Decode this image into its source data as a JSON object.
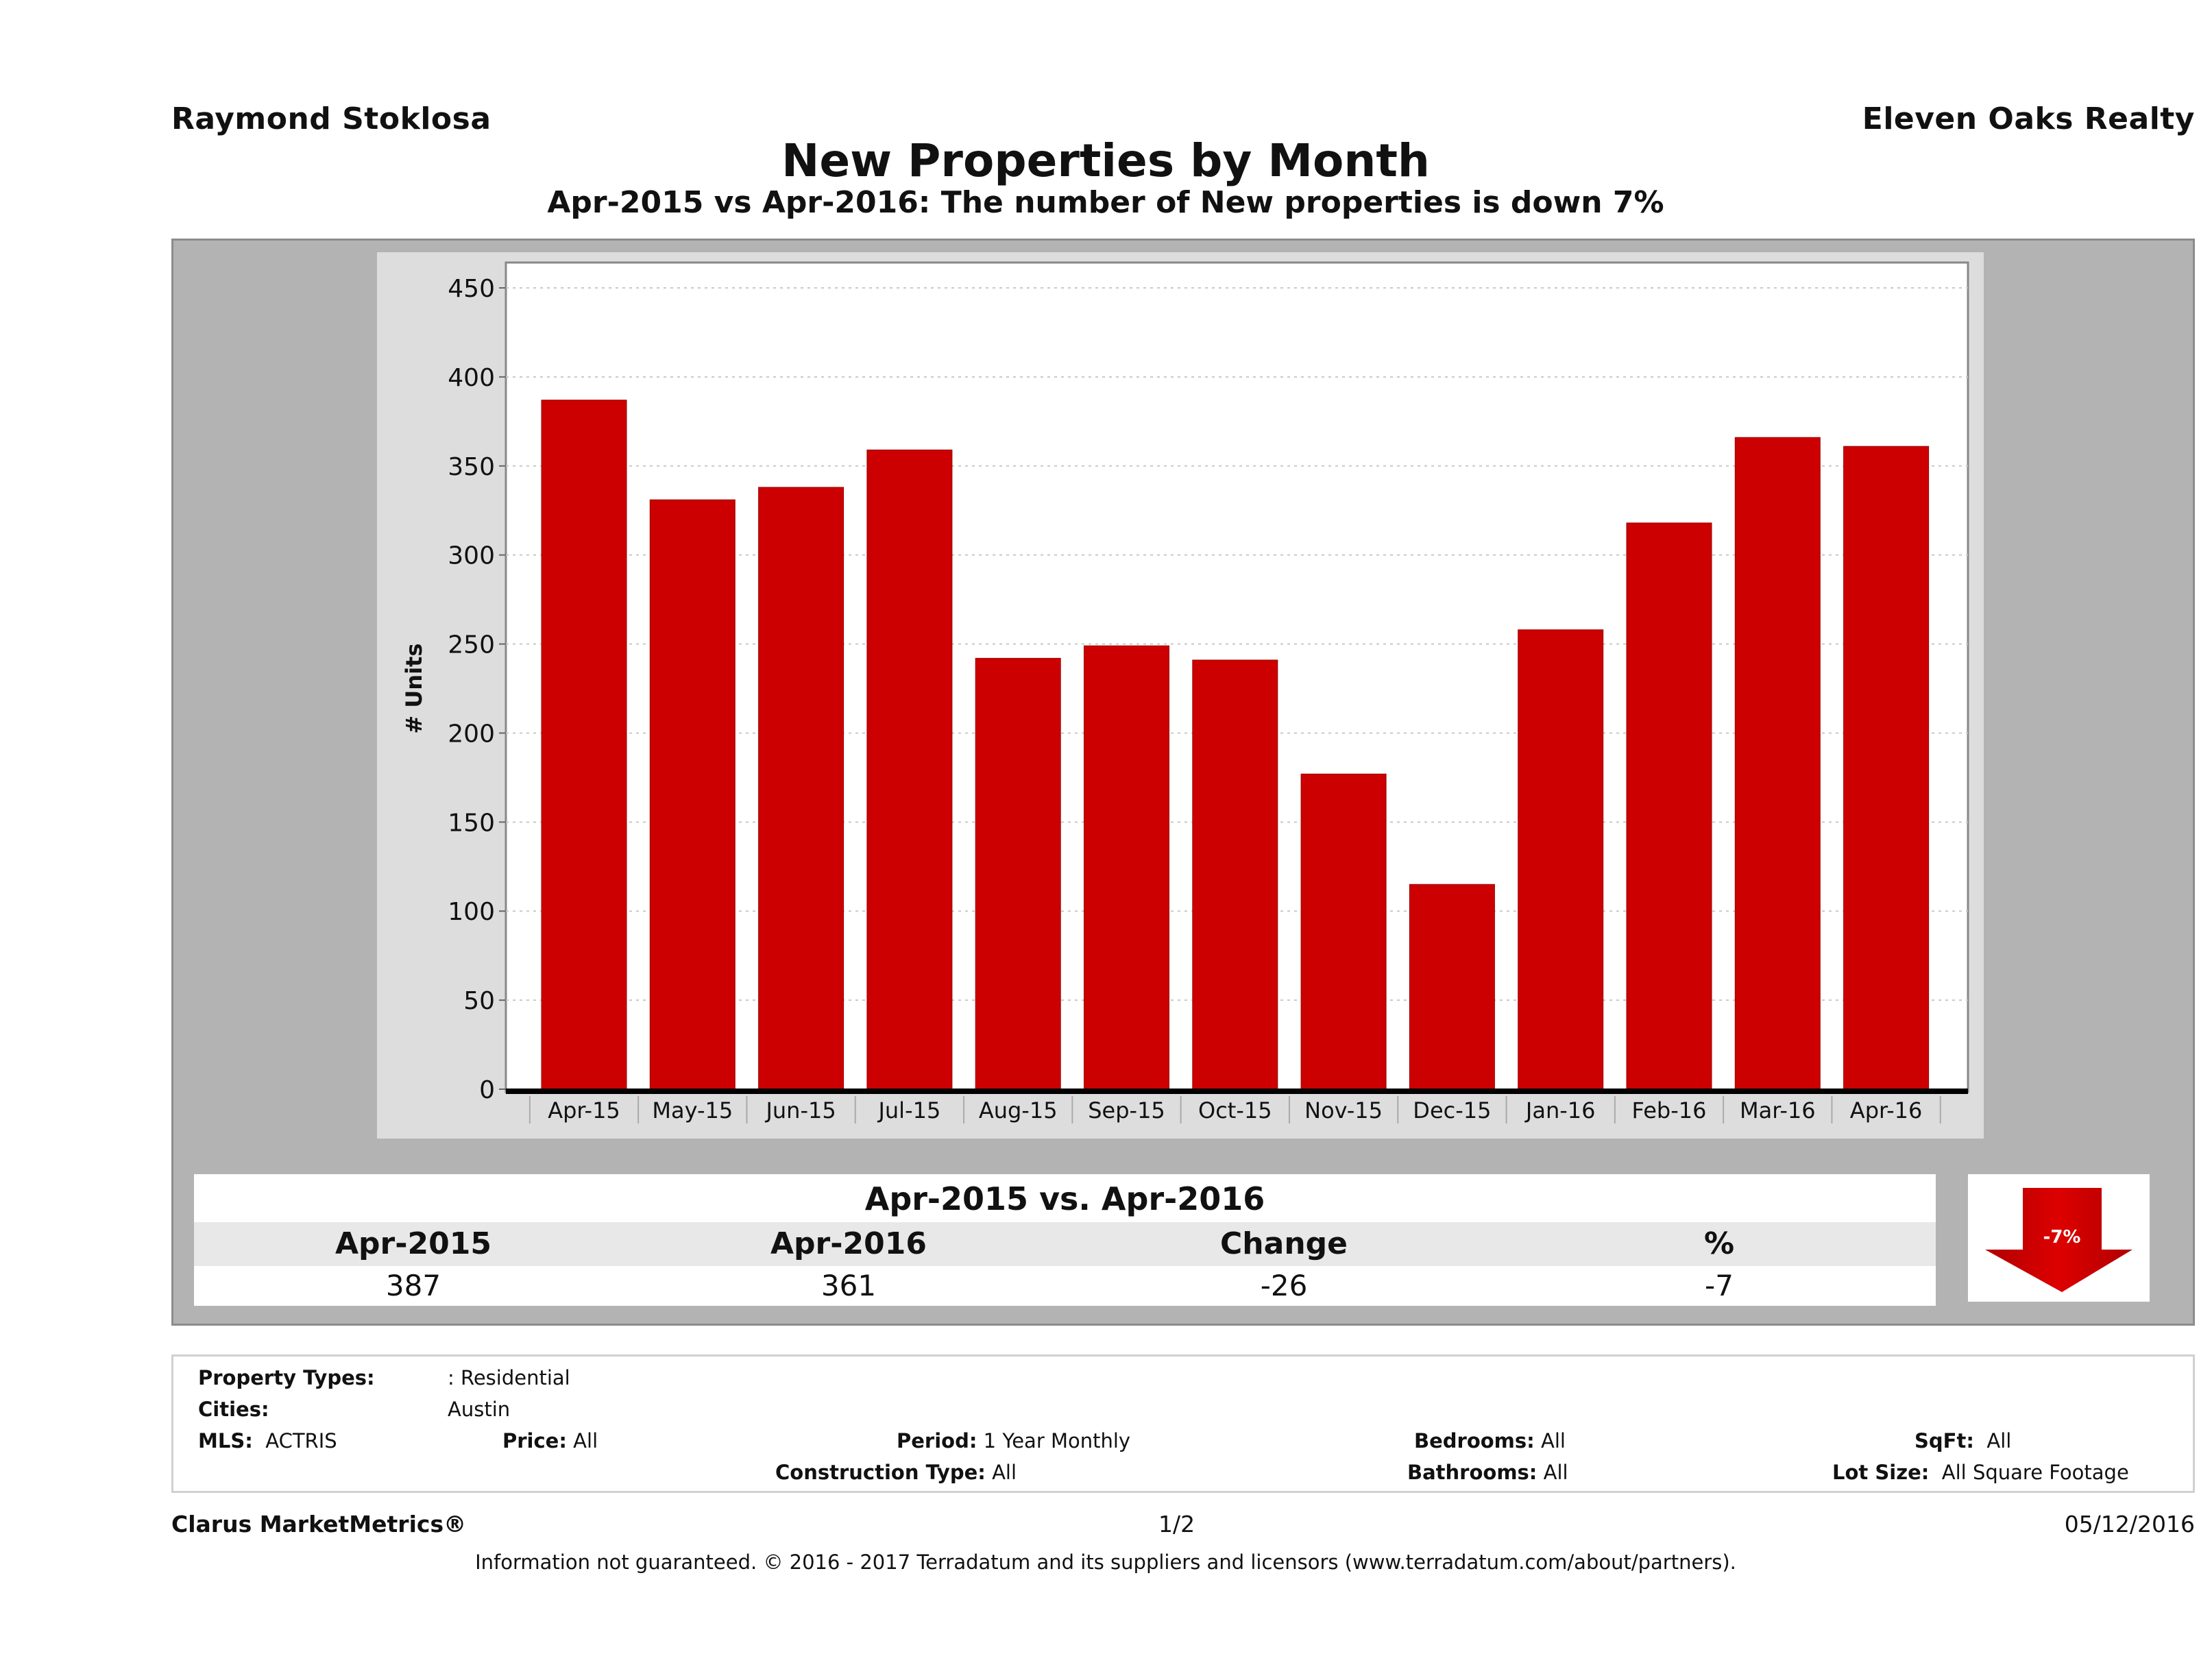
{
  "header": {
    "agent_name": "Raymond Stoklosa",
    "brokerage": "Eleven Oaks Realty",
    "title": "New Properties by Month",
    "subtitle": "Apr-2015 vs Apr-2016: The number of New  properties is down 7%"
  },
  "colors": {
    "bar": "#cc0000",
    "panel": "#b3b3b3",
    "chart_bg": "#dddddd",
    "plot_bg": "#ffffff",
    "arrow": "#cc0000"
  },
  "chart_data": {
    "type": "bar",
    "title": "New Properties by Month",
    "xlabel": "",
    "ylabel": "# Units",
    "ylim": [
      0,
      450
    ],
    "yticks": [
      0,
      50,
      100,
      150,
      200,
      250,
      300,
      350,
      400,
      450
    ],
    "ytick_labels": [
      "0",
      "50",
      "100",
      "150",
      "200",
      "250",
      "300",
      "350",
      "400",
      "450"
    ],
    "grid": true,
    "legend": "none",
    "categories": [
      "Apr-15",
      "May-15",
      "Jun-15",
      "Jul-15",
      "Aug-15",
      "Sep-15",
      "Oct-15",
      "Nov-15",
      "Dec-15",
      "Jan-16",
      "Feb-16",
      "Mar-16",
      "Apr-16"
    ],
    "series": [
      {
        "name": "New Properties",
        "values": [
          387,
          331,
          338,
          359,
          242,
          249,
          241,
          177,
          115,
          258,
          318,
          366,
          361
        ]
      }
    ]
  },
  "summary": {
    "title": "Apr-2015 vs. Apr-2016",
    "headers": [
      "Apr-2015",
      "Apr-2016",
      "Change",
      "%"
    ],
    "values": [
      "387",
      "361",
      "-26",
      "-7"
    ],
    "badge": "-7%",
    "badge_icon": "down-arrow-icon"
  },
  "criteria": {
    "property_types_label": "Property Types:",
    "property_types_value": ": Residential",
    "cities_label": "Cities:",
    "cities_value": "Austin",
    "mls_label": "MLS:",
    "mls_value": "ACTRIS",
    "price_label": "Price:",
    "price_value": "All",
    "period_label": "Period:",
    "period_value": "1 Year Monthly",
    "construction_label": "Construction Type:",
    "construction_value": "All",
    "bedrooms_label": "Bedrooms:",
    "bedrooms_value": "All",
    "bathrooms_label": "Bathrooms:",
    "bathrooms_value": "All",
    "sqft_label": "SqFt:",
    "sqft_value": "All",
    "lotsize_label": "Lot Size:",
    "lotsize_value": "All Square Footage"
  },
  "footer": {
    "product": "Clarus MarketMetrics®",
    "page": "1/2",
    "date": "05/12/2016",
    "disclaimer": "Information not guaranteed. © 2016 - 2017 Terradatum and its suppliers and licensors (www.terradatum.com/about/partners)."
  }
}
